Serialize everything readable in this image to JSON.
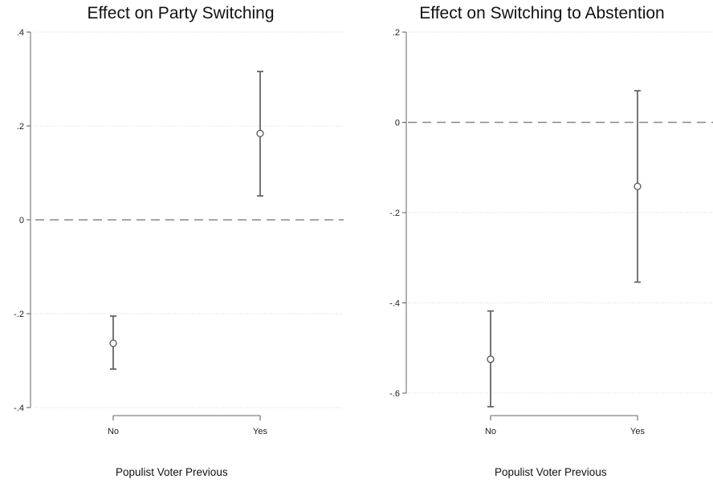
{
  "chart_data": [
    {
      "type": "scatter",
      "title": "Effect on Party Switching",
      "xlabel": "Populist Voter Previous",
      "ylabel": "",
      "categories": [
        "No",
        "Yes"
      ],
      "yticks": [
        ".4",
        ".2",
        "0",
        "-.2",
        "-.4"
      ],
      "ytick_values": [
        0.4,
        0.2,
        0,
        -0.2,
        -0.4
      ],
      "ylim": [
        -0.4,
        0.4
      ],
      "reference_line": 0,
      "grid": true,
      "points": [
        {
          "x": "No",
          "estimate": -0.263,
          "ci_low": -0.318,
          "ci_high": -0.205
        },
        {
          "x": "Yes",
          "estimate": 0.184,
          "ci_low": 0.051,
          "ci_high": 0.316
        }
      ]
    },
    {
      "type": "scatter",
      "title": "Effect on Switching to Abstention",
      "xlabel": "Populist Voter Previous",
      "ylabel": "",
      "categories": [
        "No",
        "Yes"
      ],
      "yticks": [
        ".2",
        "0",
        "-.2",
        "-.4",
        "-.6"
      ],
      "ytick_values": [
        0.2,
        0,
        -0.2,
        -0.4,
        -0.6
      ],
      "ylim": [
        -0.6,
        0.2
      ],
      "reference_line": 0,
      "grid": true,
      "points": [
        {
          "x": "No",
          "estimate": -0.525,
          "ci_low": -0.63,
          "ci_high": -0.418
        },
        {
          "x": "Yes",
          "estimate": -0.142,
          "ci_low": -0.354,
          "ci_high": 0.07
        }
      ]
    }
  ]
}
